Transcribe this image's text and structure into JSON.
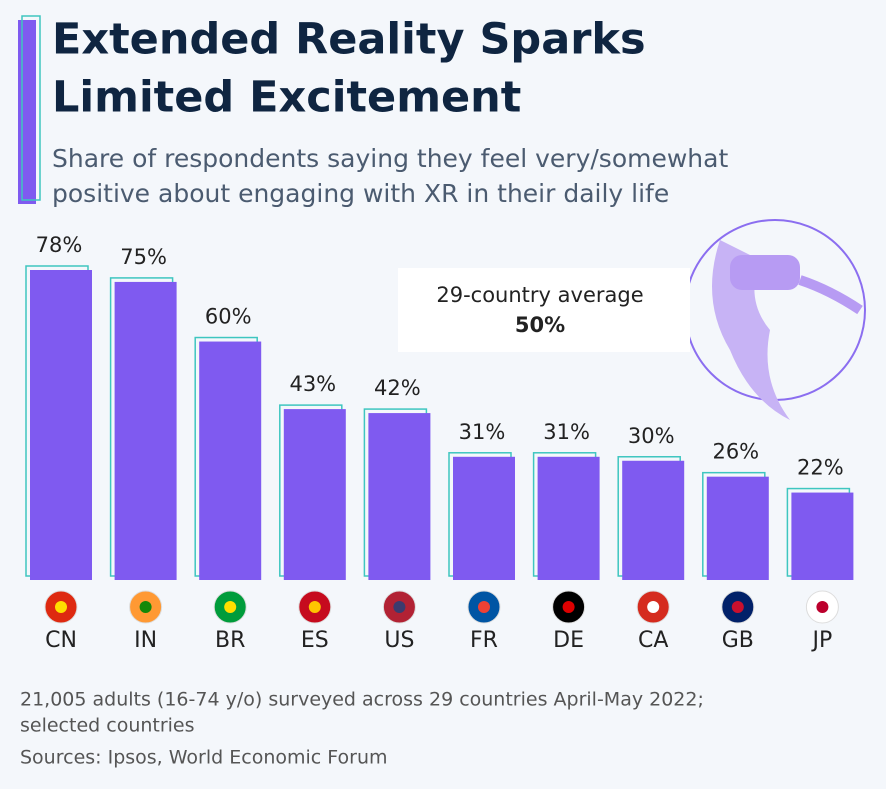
{
  "chart_data": {
    "type": "bar",
    "title": [
      "Extended Reality Sparks",
      "Limited Excitement"
    ],
    "subtitle": [
      "Share of respondents saying they feel very/somewhat",
      "positive about engaging with XR in their daily life"
    ],
    "categories": [
      "CN",
      "IN",
      "BR",
      "ES",
      "US",
      "FR",
      "DE",
      "CA",
      "GB",
      "JP"
    ],
    "values": [
      78,
      75,
      60,
      43,
      42,
      31,
      31,
      30,
      26,
      22
    ],
    "value_labels": [
      "78%",
      "75%",
      "60%",
      "43%",
      "42%",
      "31%",
      "31%",
      "30%",
      "26%",
      "22%"
    ],
    "color": "#7f5af0",
    "annotation": {
      "text": "29-country average",
      "value": 50,
      "value_label": "50%"
    },
    "footnote": [
      "21,005 adults (16-74 y/o) surveyed across 29 countries April-May 2022;",
      "selected countries"
    ],
    "source": "Sources: Ipsos, World Economic Forum"
  }
}
